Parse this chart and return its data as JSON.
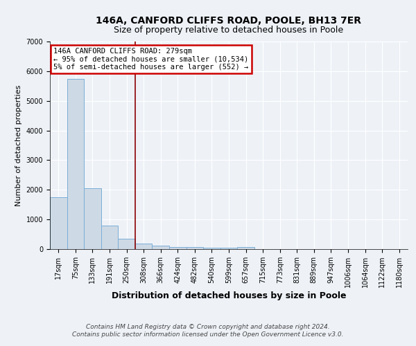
{
  "title1": "146A, CANFORD CLIFFS ROAD, POOLE, BH13 7ER",
  "title2": "Size of property relative to detached houses in Poole",
  "xlabel": "Distribution of detached houses by size in Poole",
  "ylabel": "Number of detached properties",
  "categories": [
    "17sqm",
    "75sqm",
    "133sqm",
    "191sqm",
    "250sqm",
    "308sqm",
    "366sqm",
    "424sqm",
    "482sqm",
    "540sqm",
    "599sqm",
    "657sqm",
    "715sqm",
    "773sqm",
    "831sqm",
    "889sqm",
    "947sqm",
    "1006sqm",
    "1064sqm",
    "1122sqm",
    "1180sqm"
  ],
  "values": [
    1750,
    5750,
    2050,
    800,
    340,
    190,
    110,
    80,
    60,
    50,
    40,
    60,
    0,
    0,
    0,
    0,
    0,
    0,
    0,
    0,
    0
  ],
  "bar_color": "#cdd9e5",
  "bar_edge_color": "#7aaed6",
  "vline_x_idx": 4.5,
  "vline_color": "#8b0000",
  "annotation_line1": "146A CANFORD CLIFFS ROAD: 279sqm",
  "annotation_line2": "← 95% of detached houses are smaller (10,534)",
  "annotation_line3": "5% of semi-detached houses are larger (552) →",
  "annotation_box_color": "#cc0000",
  "background_color": "#eef2f7",
  "grid_color": "#ffffff",
  "ylim": [
    0,
    7000
  ],
  "footnote_line1": "Contains HM Land Registry data © Crown copyright and database right 2024.",
  "footnote_line2": "Contains public sector information licensed under the Open Government Licence v3.0.",
  "title_fontsize": 10,
  "subtitle_fontsize": 9,
  "tick_fontsize": 7,
  "ylabel_fontsize": 8,
  "xlabel_fontsize": 9,
  "footnote_fontsize": 6.5
}
